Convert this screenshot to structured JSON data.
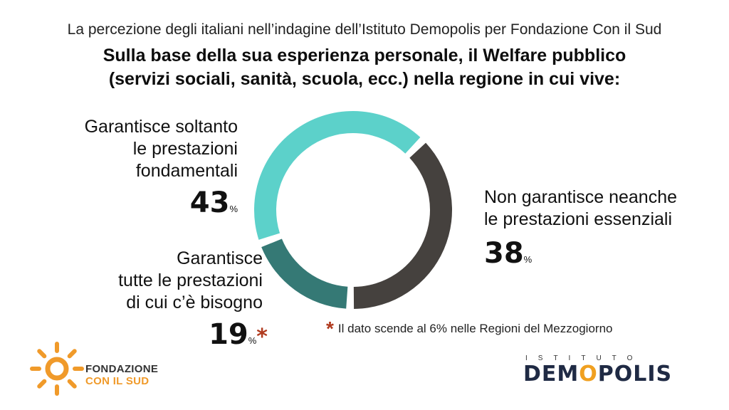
{
  "header": {
    "subtitle": "La percezione degli italiani nell’indagine dell’Istituto Demopolis per Fondazione Con il Sud",
    "title_line1": "Sulla base della sua esperienza personale, il Welfare pubblico",
    "title_line2": "(servizi sociali, sanità, scuola, ecc.) nella regione in cui vive:"
  },
  "chart_data": {
    "type": "pie",
    "variant": "donut",
    "slices": [
      {
        "label": "Garantisce soltanto le prestazioni fondamentali",
        "value": 43,
        "color": "#5cd1ca"
      },
      {
        "label": "Non garantisce neanche le prestazioni essenziali",
        "value": 38,
        "color": "#45413e"
      },
      {
        "label": "Garantisce tutte le prestazioni di cui c’è bisogno",
        "value": 19,
        "color": "#357975"
      }
    ],
    "unit": "%"
  },
  "labels": {
    "a": {
      "line1": "Garantisce soltanto",
      "line2": "le prestazioni",
      "line3": "fondamentali",
      "value": "43",
      "unit": "%"
    },
    "b": {
      "line1": "Non garantisce neanche",
      "line2": "le prestazioni essenziali",
      "value": "38",
      "unit": "%"
    },
    "c": {
      "line1": "Garantisce",
      "line2": "tutte le prestazioni",
      "line3": "di cui c’è bisogno",
      "value": "19",
      "unit": "%",
      "star": "*"
    }
  },
  "note": {
    "star": "*",
    "text": "Il dato scende al 6% nelle Regioni del Mezzogiorno"
  },
  "logos": {
    "fondazione_line1": "FONDAZIONE",
    "fondazione_line2": "CON IL SUD",
    "istituto": "ISTITUTO",
    "demopolis_pre": "DEM",
    "demopolis_o": "O",
    "demopolis_post": "POLIS"
  }
}
